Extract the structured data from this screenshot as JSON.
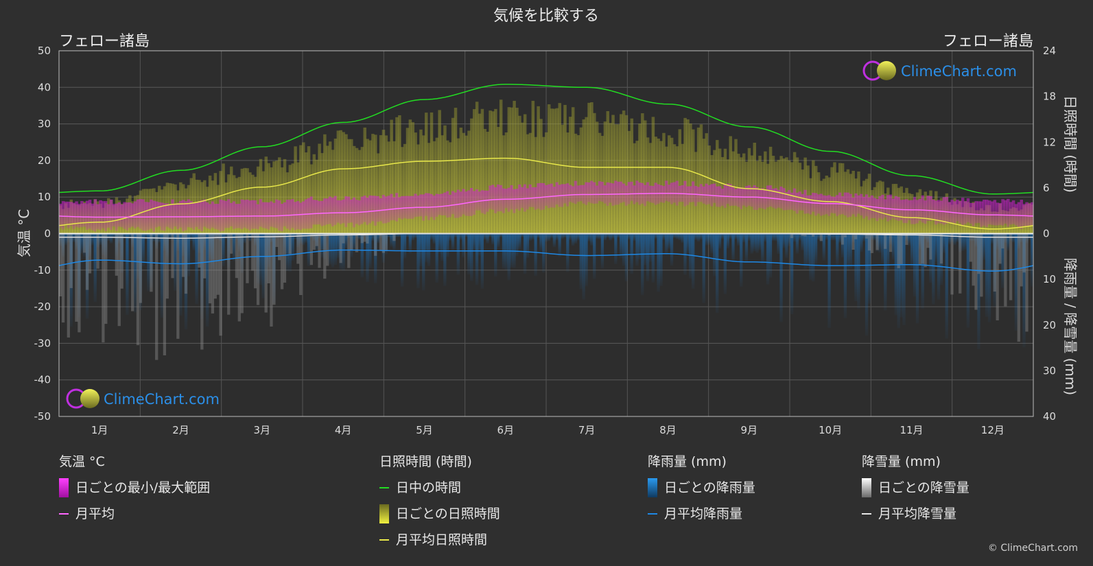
{
  "title": "気候を比較する",
  "location_left": "フェロー諸島",
  "location_right": "フェロー諸島",
  "brand": "ClimeChart.com",
  "copyright": "© ClimeChart.com",
  "colors": {
    "background": "#2f2f2f",
    "daylight": "#22dd22",
    "sunshine_line": "#e8e84a",
    "sunshine_fill": "#b8b830",
    "temp_mean": "#ff66ff",
    "temp_range": "#d020d0",
    "rain": "#1e88e5",
    "snow": "#dddddd",
    "brand_text": "#2b8fe8"
  },
  "chart_data": {
    "type": "line",
    "months": [
      "1月",
      "2月",
      "3月",
      "4月",
      "5月",
      "6月",
      "7月",
      "8月",
      "9月",
      "10月",
      "11月",
      "12月"
    ],
    "axes": {
      "left": {
        "label": "気温 °C",
        "min": -50,
        "max": 50,
        "ticks": [
          50,
          40,
          30,
          20,
          10,
          0,
          -10,
          -20,
          -30,
          -40,
          -50
        ]
      },
      "right_top": {
        "label": "日照時間 (時間)",
        "min": 0,
        "max": 24,
        "ticks": [
          24,
          18,
          12,
          6,
          0
        ]
      },
      "right_bottom": {
        "label": "降雨量 / 降雪量 (mm)",
        "min": 0,
        "max": 40,
        "ticks": [
          0,
          10,
          20,
          30,
          40
        ]
      }
    },
    "grid": true,
    "series": [
      {
        "name": "日中の時間",
        "axis": "hours",
        "values": [
          5.6,
          8.3,
          11.4,
          14.6,
          17.6,
          19.6,
          19.2,
          17.0,
          14.0,
          10.8,
          7.6,
          5.2
        ]
      },
      {
        "name": "月平均日照時間",
        "axis": "hours",
        "values": [
          1.5,
          3.9,
          6.1,
          8.5,
          9.5,
          9.9,
          8.7,
          8.7,
          5.9,
          4.2,
          2.1,
          0.6
        ]
      },
      {
        "name": "月平均",
        "axis": "temp",
        "values": [
          4.5,
          4.6,
          4.8,
          5.7,
          7.2,
          9.4,
          10.7,
          11.0,
          10.0,
          8.2,
          6.5,
          5.1
        ]
      },
      {
        "name": "月平均降雨量",
        "axis": "mm",
        "values": [
          5.8,
          6.6,
          5.0,
          3.6,
          3.8,
          3.8,
          4.8,
          4.4,
          6.2,
          7.0,
          6.8,
          8.2
        ]
      },
      {
        "name": "月平均降雪量",
        "axis": "mm",
        "values": [
          0.8,
          1.0,
          0.7,
          0.3,
          0.0,
          0.0,
          0.0,
          0.0,
          0.0,
          0.1,
          0.3,
          0.8
        ]
      }
    ],
    "daily_temp_range": {
      "min": [
        2,
        2,
        2,
        3,
        5,
        7,
        9,
        9,
        8,
        6,
        4,
        3
      ],
      "max": [
        8,
        8,
        8,
        9,
        10,
        12,
        13,
        13,
        12,
        10,
        9,
        8
      ]
    },
    "daily_sunshine_max": [
      4.5,
      7.5,
      10.0,
      13.0,
      15.5,
      17.0,
      16.5,
      15.0,
      12.0,
      9.0,
      6.0,
      3.8
    ]
  },
  "legend": {
    "groups": [
      {
        "title": "気温 °C",
        "items": [
          {
            "label": "日ごとの最小/最大範囲",
            "kind": "box",
            "color": "#d020d0"
          },
          {
            "label": "月平均",
            "kind": "line",
            "color": "#ff66ff"
          }
        ]
      },
      {
        "title": "日照時間 (時間)",
        "items": [
          {
            "label": "日中の時間",
            "kind": "line",
            "color": "#22dd22"
          },
          {
            "label": "日ごとの日照時間",
            "kind": "box",
            "color": "#c8c840"
          },
          {
            "label": "月平均日照時間",
            "kind": "line",
            "color": "#e8e84a"
          }
        ]
      },
      {
        "title": "降雨量 (mm)",
        "items": [
          {
            "label": "日ごとの降雨量",
            "kind": "box",
            "color": "#1e88e5"
          },
          {
            "label": "月平均降雨量",
            "kind": "line",
            "color": "#1e88e5"
          }
        ]
      },
      {
        "title": "降雪量 (mm)",
        "items": [
          {
            "label": "日ごとの降雪量",
            "kind": "box",
            "color": "#e8e8e8"
          },
          {
            "label": "月平均降雪量",
            "kind": "line",
            "color": "#e8e8e8"
          }
        ]
      }
    ]
  }
}
